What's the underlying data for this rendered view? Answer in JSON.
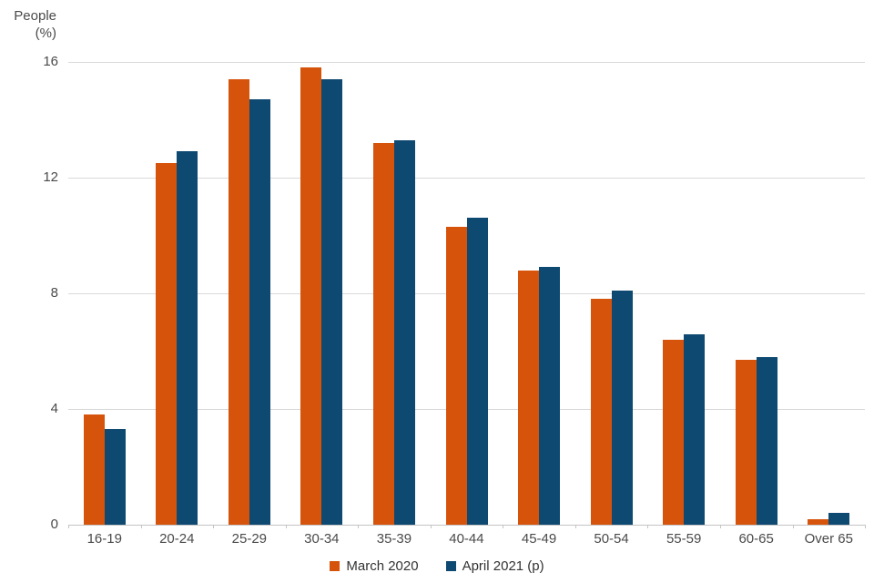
{
  "chart_data": {
    "type": "bar",
    "title": "",
    "ylabel_lines": [
      "People",
      "(%)"
    ],
    "categories": [
      "16-19",
      "20-24",
      "25-29",
      "30-34",
      "35-39",
      "40-44",
      "45-49",
      "50-54",
      "55-59",
      "60-65",
      "Over 65"
    ],
    "series": [
      {
        "name": "March 2020",
        "color": "#d5530b",
        "values": [
          3.8,
          12.5,
          15.4,
          15.8,
          13.2,
          10.3,
          8.8,
          7.8,
          6.4,
          5.7,
          0.2
        ]
      },
      {
        "name": "April 2021 (p)",
        "color": "#0d4970",
        "values": [
          3.3,
          12.9,
          14.7,
          15.4,
          13.3,
          10.6,
          8.9,
          8.1,
          6.6,
          5.8,
          0.4
        ]
      }
    ],
    "ylim": [
      0,
      16
    ],
    "yticks": [
      0,
      4,
      8,
      12,
      16
    ],
    "grid": true,
    "legend_position": "bottom"
  },
  "colors": {
    "gridline": "#d9d9d9",
    "axis": "#c4c4c4",
    "text": "#4a4a4a"
  }
}
